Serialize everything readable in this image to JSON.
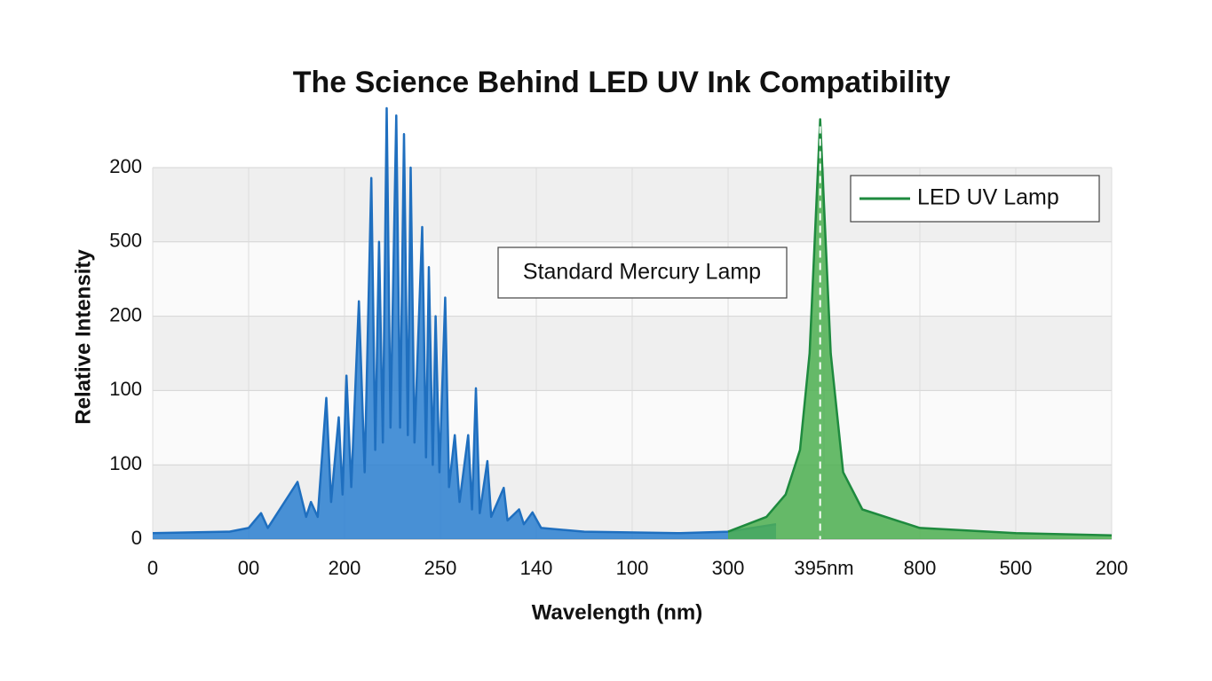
{
  "chart_data": {
    "type": "area",
    "title": "The Science Behind LED UV Ink Compatibility",
    "x_label": "Wavelength (nm)",
    "y_label": "Relative Intensity",
    "xlim": [
      0,
      10
    ],
    "ylim": [
      0,
      5
    ],
    "xticks": [
      0,
      {
        "value": 1,
        "label": "00"
      },
      {
        "value": 2,
        "label": "200"
      },
      {
        "value": 3,
        "label": "250"
      },
      {
        "value": 4,
        "label": "140"
      },
      {
        "value": 5,
        "label": "100"
      },
      {
        "value": 6,
        "label": "300"
      },
      {
        "value": 7,
        "label": "395nm"
      },
      {
        "value": 8,
        "label": "800"
      },
      {
        "value": 9,
        "label": "500"
      },
      {
        "value": 10,
        "label": "200"
      }
    ],
    "yticks": [
      0,
      {
        "value": 1,
        "label": "100"
      },
      {
        "value": 2,
        "label": "100"
      },
      {
        "value": 3,
        "label": "200"
      },
      {
        "value": 4,
        "label": "500"
      },
      {
        "value": 5,
        "label": "200"
      }
    ],
    "grid": true,
    "legend": "upper right",
    "series": [
      {
        "name": "Standard Mercury Lamp",
        "color": "#1f6fbf",
        "fill": "#2a7fd0",
        "x": [
          0,
          0.8,
          1.0,
          1.13,
          1.2,
          1.51,
          1.6,
          1.65,
          1.72,
          1.81,
          1.86,
          1.94,
          1.98,
          2.02,
          2.07,
          2.15,
          2.21,
          2.28,
          2.32,
          2.36,
          2.4,
          2.44,
          2.48,
          2.54,
          2.58,
          2.62,
          2.66,
          2.69,
          2.73,
          2.81,
          2.85,
          2.88,
          2.92,
          2.95,
          2.99,
          3.05,
          3.09,
          3.15,
          3.2,
          3.29,
          3.33,
          3.37,
          3.41,
          3.49,
          3.53,
          3.66,
          3.7,
          3.82,
          3.87,
          3.96,
          4.05,
          4.5,
          5.5,
          6.0,
          6.5
        ],
        "values": [
          0.08,
          0.1,
          0.15,
          0.35,
          0.15,
          0.77,
          0.3,
          0.5,
          0.3,
          1.9,
          0.5,
          1.64,
          0.6,
          2.2,
          0.7,
          3.2,
          0.9,
          4.86,
          1.2,
          4.0,
          1.3,
          5.8,
          1.5,
          5.7,
          1.5,
          5.45,
          1.4,
          5.0,
          1.3,
          4.2,
          1.1,
          3.66,
          1.0,
          3.0,
          0.9,
          3.25,
          0.7,
          1.4,
          0.5,
          1.4,
          0.4,
          2.03,
          0.35,
          1.05,
          0.3,
          0.69,
          0.25,
          0.4,
          0.2,
          0.36,
          0.15,
          0.1,
          0.08,
          0.1,
          0.2
        ]
      },
      {
        "name": "LED UV Lamp",
        "color": "#1e8a3e",
        "fill": "#4caf50",
        "x": [
          6.0,
          6.4,
          6.6,
          6.75,
          6.85,
          6.92,
          6.96,
          7.0,
          7.07,
          7.2,
          7.4,
          8.0,
          9.0,
          10.0
        ],
        "values": [
          0.1,
          0.3,
          0.6,
          1.2,
          2.5,
          4.5,
          5.65,
          4.5,
          2.5,
          0.9,
          0.4,
          0.15,
          0.08,
          0.05
        ]
      }
    ]
  }
}
